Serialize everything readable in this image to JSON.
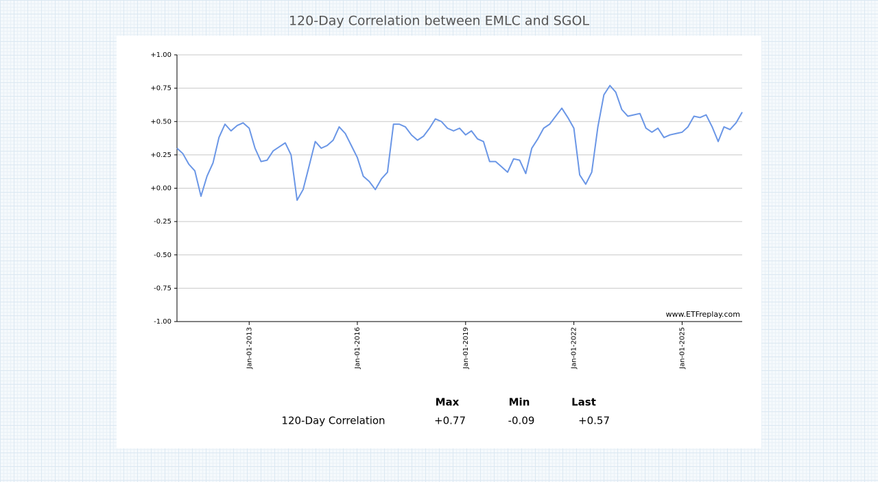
{
  "chart_data": {
    "type": "line",
    "title": "120-Day Correlation between EMLC and SGOL",
    "watermark": "www.ETFreplay.com",
    "x": [
      "2011-01-01",
      "2011-03-01",
      "2011-05-01",
      "2011-07-01",
      "2011-09-01",
      "2011-11-01",
      "2012-01-01",
      "2012-03-01",
      "2012-05-01",
      "2012-07-01",
      "2012-09-01",
      "2012-11-01",
      "2013-01-01",
      "2013-03-01",
      "2013-05-01",
      "2013-07-01",
      "2013-09-01",
      "2013-11-01",
      "2014-01-01",
      "2014-03-01",
      "2014-05-01",
      "2014-07-01",
      "2014-09-01",
      "2014-11-01",
      "2015-01-01",
      "2015-03-01",
      "2015-05-01",
      "2015-07-01",
      "2015-09-01",
      "2015-11-01",
      "2016-01-01",
      "2016-03-01",
      "2016-05-01",
      "2016-07-01",
      "2016-09-01",
      "2016-11-01",
      "2017-01-01",
      "2017-03-01",
      "2017-05-01",
      "2017-07-01",
      "2017-09-01",
      "2017-11-01",
      "2018-01-01",
      "2018-03-01",
      "2018-05-01",
      "2018-07-01",
      "2018-09-01",
      "2018-11-01",
      "2019-01-01",
      "2019-03-01",
      "2019-05-01",
      "2019-07-01",
      "2019-09-01",
      "2019-11-01",
      "2020-01-01",
      "2020-03-01",
      "2020-05-01",
      "2020-07-01",
      "2020-09-01",
      "2020-11-01",
      "2021-01-01",
      "2021-03-01",
      "2021-05-01",
      "2021-07-01",
      "2021-09-01",
      "2021-11-01",
      "2022-01-01",
      "2022-03-01",
      "2022-05-01",
      "2022-07-01",
      "2022-09-01",
      "2022-11-01",
      "2023-01-01",
      "2023-03-01",
      "2023-05-01",
      "2023-07-01",
      "2023-09-01",
      "2023-11-01",
      "2024-01-01",
      "2024-03-01",
      "2024-05-01",
      "2024-07-01",
      "2024-09-01",
      "2024-11-01",
      "2025-01-01",
      "2025-03-01",
      "2025-05-01",
      "2025-07-01",
      "2025-09-01",
      "2025-11-01",
      "2026-01-01",
      "2026-03-01",
      "2026-05-01",
      "2026-07-01",
      "2026-09-01"
    ],
    "series": [
      {
        "name": "120-Day Correlation",
        "color": "#6a96e6",
        "values": [
          0.3,
          0.26,
          0.18,
          0.13,
          -0.06,
          0.09,
          0.19,
          0.38,
          0.48,
          0.43,
          0.47,
          0.49,
          0.45,
          0.3,
          0.2,
          0.21,
          0.28,
          0.31,
          0.34,
          0.25,
          -0.09,
          -0.01,
          0.17,
          0.35,
          0.3,
          0.32,
          0.36,
          0.46,
          0.41,
          0.32,
          0.23,
          0.09,
          0.05,
          -0.01,
          0.07,
          0.12,
          0.48,
          0.48,
          0.46,
          0.4,
          0.36,
          0.39,
          0.45,
          0.52,
          0.5,
          0.45,
          0.43,
          0.45,
          0.4,
          0.43,
          0.37,
          0.35,
          0.2,
          0.2,
          0.16,
          0.12,
          0.22,
          0.21,
          0.11,
          0.3,
          0.37,
          0.45,
          0.48,
          0.54,
          0.6,
          0.53,
          0.45,
          0.1,
          0.03,
          0.12,
          0.46,
          0.7,
          0.77,
          0.72,
          0.59,
          0.54,
          0.55,
          0.56,
          0.45,
          0.42,
          0.45,
          0.38,
          0.4,
          0.41,
          0.42,
          0.46,
          0.54,
          0.53,
          0.55,
          0.46,
          0.35,
          0.46,
          0.44,
          0.49,
          0.57
        ]
      }
    ],
    "xlim": [
      "2011-01-01",
      "2026-09-01"
    ],
    "xticks": [
      {
        "value": "2013-01-01",
        "label": "Jan-01-2013"
      },
      {
        "value": "2016-01-01",
        "label": "Jan-01-2016"
      },
      {
        "value": "2019-01-01",
        "label": "Jan-01-2019"
      },
      {
        "value": "2022-01-01",
        "label": "Jan-01-2022"
      },
      {
        "value": "2025-01-01",
        "label": "Jan-01-2025"
      }
    ],
    "ylim": [
      -1,
      1
    ],
    "yticks": [
      {
        "value": -1,
        "label": "-1.00"
      },
      {
        "value": -0.75,
        "label": "-0.75"
      },
      {
        "value": -0.5,
        "label": "-0.50"
      },
      {
        "value": -0.25,
        "label": "-0.25"
      },
      {
        "value": 0,
        "label": "+0.00"
      },
      {
        "value": 0.25,
        "label": "+0.25"
      },
      {
        "value": 0.5,
        "label": "+0.50"
      },
      {
        "value": 0.75,
        "label": "+0.75"
      },
      {
        "value": 1,
        "label": "+1.00"
      }
    ],
    "grid": true,
    "stats": {
      "columns": [
        "Max",
        "Min",
        "Last"
      ],
      "rows": [
        {
          "label": "120-Day Correlation",
          "values": [
            0.77,
            -0.09,
            0.57
          ],
          "value_labels": [
            "+0.77",
            "-0.09",
            "+0.57"
          ]
        }
      ]
    }
  }
}
